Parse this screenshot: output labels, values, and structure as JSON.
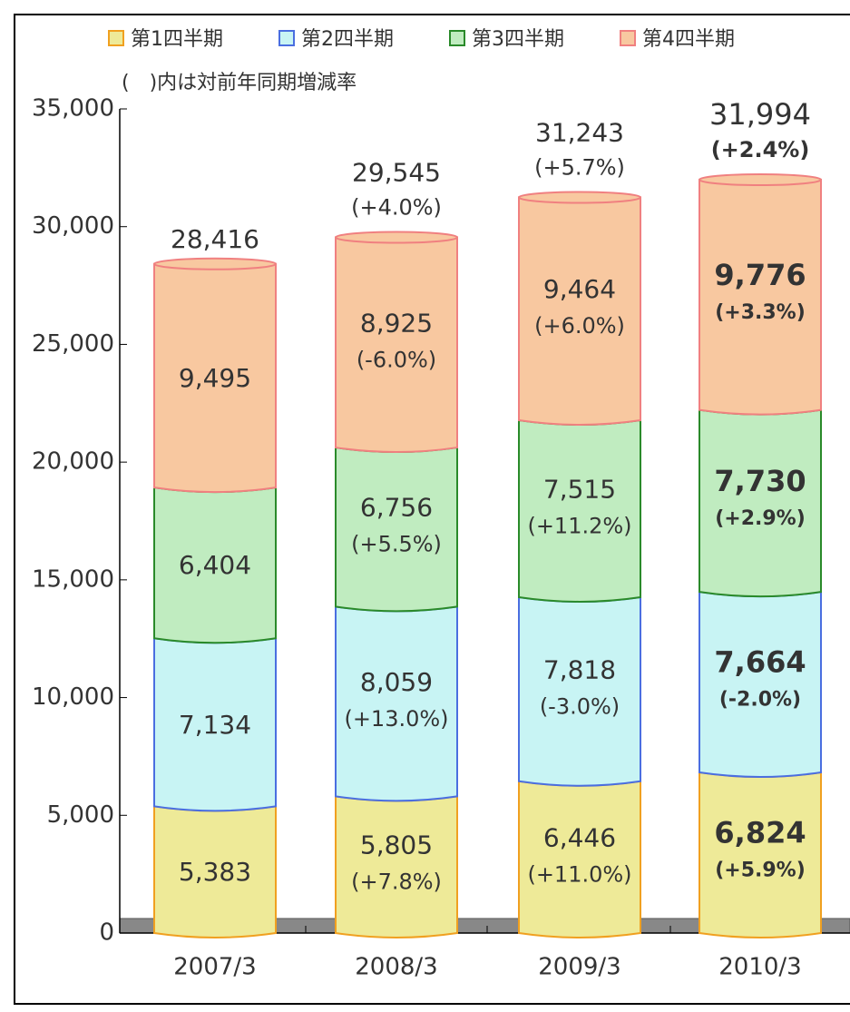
{
  "chart_data": {
    "type": "bar",
    "stacked": true,
    "subtitle": "(　)内は対前年同期増減率",
    "categories": [
      "2007/3",
      "2008/3",
      "2009/3",
      "2010/3"
    ],
    "series": [
      {
        "name": "第1四半期",
        "color": "#eeea98",
        "edge": "#f0a020",
        "values": [
          5383,
          5805,
          6446,
          6824
        ],
        "value_labels": [
          "5,383",
          "5,805",
          "6,446",
          "6,824"
        ],
        "growth_labels": [
          null,
          "(+7.8%)",
          "(+11.0%)",
          "(+5.9%)"
        ]
      },
      {
        "name": "第2四半期",
        "color": "#c8f4f4",
        "edge": "#4a6ee0",
        "values": [
          7134,
          8059,
          7818,
          7664
        ],
        "value_labels": [
          "7,134",
          "8,059",
          "7,818",
          "7,664"
        ],
        "growth_labels": [
          null,
          "(+13.0%)",
          "(-3.0%)",
          "(-2.0%)"
        ]
      },
      {
        "name": "第3四半期",
        "color": "#c0ecc0",
        "edge": "#2a8a2a",
        "values": [
          6404,
          6756,
          7515,
          7730
        ],
        "value_labels": [
          "6,404",
          "6,756",
          "7,515",
          "7,730"
        ],
        "growth_labels": [
          null,
          "(+5.5%)",
          "(+11.2%)",
          "(+2.9%)"
        ]
      },
      {
        "name": "第4四半期",
        "color": "#f8c8a0",
        "edge": "#f08080",
        "values": [
          9495,
          8925,
          9464,
          9776
        ],
        "value_labels": [
          "9,495",
          "8,925",
          "9,464",
          "9,776"
        ],
        "growth_labels": [
          null,
          "(-6.0%)",
          "(+6.0%)",
          "(+3.3%)"
        ]
      }
    ],
    "totals": {
      "values": [
        28416,
        29545,
        31243,
        31994
      ],
      "value_labels": [
        "28,416",
        "29,545",
        "31,243",
        "31,994"
      ],
      "growth_labels": [
        null,
        "(+4.0%)",
        "(+5.7%)",
        "(+2.4%)"
      ]
    },
    "ylim": [
      0,
      35000
    ],
    "yticks": [
      0,
      {
        "value": 5000,
        "label": "5,000"
      },
      {
        "value": 10000,
        "label": "10,000"
      },
      {
        "value": 15000,
        "label": "15,000"
      },
      {
        "value": 20000,
        "label": "20,000"
      },
      {
        "value": 25000,
        "label": "25,000"
      },
      {
        "value": 30000,
        "label": "30,000"
      },
      {
        "value": 35000,
        "label": "35,000"
      }
    ],
    "legend": "top"
  }
}
